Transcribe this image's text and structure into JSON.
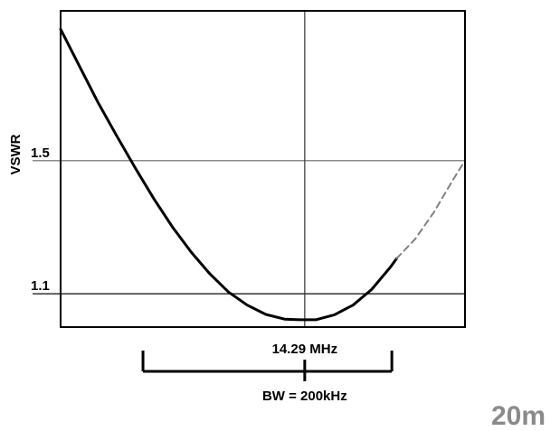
{
  "chart_data": {
    "type": "line",
    "title": "",
    "xlabel": "",
    "ylabel": "VSWR",
    "ylim": [
      1.0,
      1.95
    ],
    "xlim": [
      14.0938,
      14.4188
    ],
    "yticks": [
      {
        "value": 1.5,
        "label": "1.5"
      },
      {
        "value": 1.1,
        "label": "1.1"
      }
    ],
    "center_marker": {
      "x": 14.29,
      "label": "14.29 MHz"
    },
    "bandwidth": {
      "x_start": 14.16,
      "x_end": 14.36,
      "label": "BW = 200kHz"
    },
    "band_label": "20m",
    "grid": false,
    "series": [
      {
        "style": "solid",
        "color": "#000000",
        "x": [
          14.0938,
          14.1088,
          14.1238,
          14.1388,
          14.1538,
          14.1688,
          14.1838,
          14.1988,
          14.2138,
          14.2288,
          14.2438,
          14.2588,
          14.2738,
          14.2863,
          14.2988,
          14.3138,
          14.3288,
          14.3438,
          14.3588,
          14.3638
        ],
        "y": [
          1.895,
          1.785,
          1.675,
          1.575,
          1.478,
          1.385,
          1.3,
          1.225,
          1.16,
          1.105,
          1.066,
          1.038,
          1.024,
          1.022,
          1.022,
          1.037,
          1.066,
          1.113,
          1.18,
          1.206
        ]
      },
      {
        "style": "dashed",
        "color": "#808080",
        "x": [
          14.3638,
          14.3788,
          14.3938,
          14.4088,
          14.4188
        ],
        "y": [
          1.206,
          1.265,
          1.345,
          1.44,
          1.5
        ]
      }
    ]
  }
}
